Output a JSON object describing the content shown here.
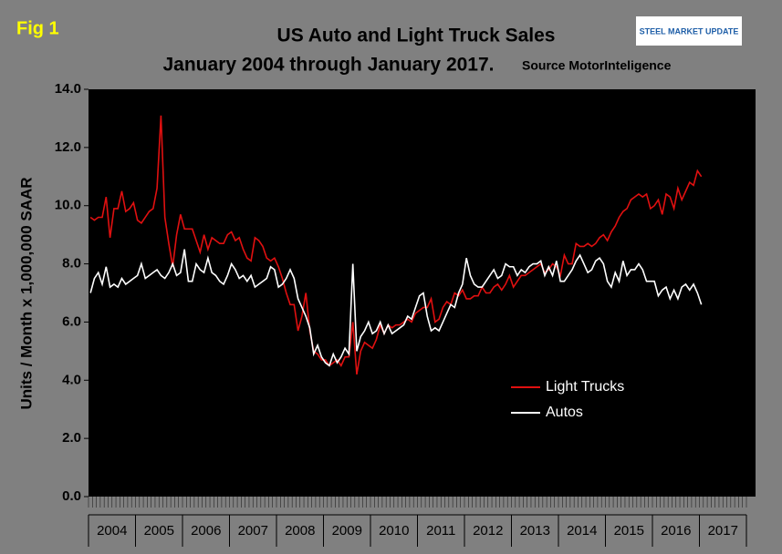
{
  "chart_data": {
    "type": "line",
    "figure_label": "Fig 1",
    "title": "US Auto and Light Truck Sales",
    "subtitle": "January 2004 through January 2017.",
    "source": "Source MotorInteligence",
    "logo_text": "STEEL MARKET UPDATE",
    "y_label": "Units / Month x 1,000,000 SAAR",
    "categories": [
      "2004",
      null,
      null,
      null,
      null,
      null,
      null,
      null,
      null,
      null,
      null,
      null,
      "2005",
      null,
      null,
      null,
      null,
      null,
      null,
      null,
      null,
      null,
      null,
      null,
      "2006",
      null,
      null,
      null,
      null,
      null,
      null,
      null,
      null,
      null,
      null,
      null,
      "2007",
      null,
      null,
      null,
      null,
      null,
      null,
      null,
      null,
      null,
      null,
      null,
      "2008",
      null,
      null,
      null,
      null,
      null,
      null,
      null,
      null,
      null,
      null,
      null,
      "2009",
      null,
      null,
      null,
      null,
      null,
      null,
      null,
      null,
      null,
      null,
      null,
      "2010",
      null,
      null,
      null,
      null,
      null,
      null,
      null,
      null,
      null,
      null,
      null,
      "2011",
      null,
      null,
      null,
      null,
      null,
      null,
      null,
      null,
      null,
      null,
      null,
      "2012",
      null,
      null,
      null,
      null,
      null,
      null,
      null,
      null,
      null,
      null,
      null,
      "2013",
      null,
      null,
      null,
      null,
      null,
      null,
      null,
      null,
      null,
      null,
      null,
      "2014",
      null,
      null,
      null,
      null,
      null,
      null,
      null,
      null,
      null,
      null,
      null,
      "2015",
      null,
      null,
      null,
      null,
      null,
      null,
      null,
      null,
      null,
      null,
      null,
      "2016",
      null,
      null,
      null,
      null,
      null,
      null,
      null,
      null,
      null,
      null,
      null,
      "2017"
    ],
    "series": [
      {
        "name": "Light Trucks",
        "color": "#e01010",
        "values": [
          9.6,
          9.5,
          9.6,
          9.6,
          10.3,
          8.9,
          9.9,
          9.9,
          10.5,
          9.8,
          9.9,
          10.1,
          9.5,
          9.4,
          9.6,
          9.8,
          9.9,
          10.6,
          13.1,
          9.6,
          8.7,
          7.9,
          9.0,
          9.7,
          9.2,
          9.2,
          9.2,
          8.8,
          8.4,
          9.0,
          8.5,
          8.9,
          8.8,
          8.7,
          8.7,
          9.0,
          9.1,
          8.8,
          8.9,
          8.5,
          8.2,
          8.1,
          8.9,
          8.8,
          8.6,
          8.2,
          8.1,
          8.2,
          7.9,
          7.5,
          7.0,
          6.6,
          6.6,
          5.7,
          6.2,
          7.0,
          5.7,
          5.0,
          4.9,
          4.7,
          4.7,
          4.5,
          4.6,
          4.7,
          4.5,
          4.8,
          4.8,
          6.0,
          4.2,
          5.0,
          5.3,
          5.2,
          5.1,
          5.4,
          5.9,
          5.6,
          5.9,
          5.8,
          5.9,
          5.9,
          6.0,
          6.1,
          6.0,
          6.3,
          6.4,
          6.5,
          6.5,
          6.8,
          6.0,
          6.1,
          6.5,
          6.7,
          6.6,
          7.0,
          6.9,
          7.1,
          6.8,
          6.8,
          6.9,
          6.9,
          7.2,
          7.0,
          7.0,
          7.2,
          7.3,
          7.1,
          7.3,
          7.6,
          7.2,
          7.4,
          7.6,
          7.6,
          7.7,
          7.8,
          7.9,
          8.0,
          7.7,
          7.8,
          8.0,
          7.9,
          7.6,
          8.3,
          8.0,
          8.0,
          8.7,
          8.6,
          8.6,
          8.7,
          8.6,
          8.7,
          8.9,
          9.0,
          8.8,
          9.1,
          9.3,
          9.6,
          9.8,
          9.9,
          10.2,
          10.3,
          10.4,
          10.3,
          10.4,
          9.9,
          10.0,
          10.2,
          9.7,
          10.4,
          10.3,
          9.9,
          10.6,
          10.2,
          10.5,
          10.8,
          10.7,
          11.2,
          11.0
        ]
      },
      {
        "name": "Autos",
        "color": "#ffffff",
        "values": [
          7.0,
          7.5,
          7.7,
          7.3,
          7.9,
          7.2,
          7.3,
          7.2,
          7.5,
          7.3,
          7.4,
          7.5,
          7.6,
          8.0,
          7.5,
          7.6,
          7.7,
          7.8,
          7.6,
          7.5,
          7.7,
          8.0,
          7.6,
          7.7,
          8.5,
          7.4,
          7.4,
          8.0,
          7.8,
          7.7,
          8.2,
          7.7,
          7.6,
          7.4,
          7.3,
          7.6,
          8.0,
          7.8,
          7.5,
          7.6,
          7.4,
          7.6,
          7.2,
          7.3,
          7.4,
          7.5,
          7.9,
          7.8,
          7.2,
          7.3,
          7.5,
          7.8,
          7.5,
          6.8,
          6.5,
          6.2,
          5.8,
          4.9,
          5.2,
          4.8,
          4.6,
          4.5,
          4.9,
          4.6,
          4.8,
          5.1,
          4.9,
          8.0,
          5.0,
          5.5,
          5.7,
          6.0,
          5.6,
          5.7,
          6.0,
          5.6,
          5.9,
          5.6,
          5.7,
          5.8,
          5.9,
          6.2,
          6.1,
          6.5,
          6.9,
          7.0,
          6.2,
          5.7,
          5.8,
          5.7,
          6.0,
          6.3,
          6.6,
          6.5,
          7.0,
          7.3,
          8.2,
          7.6,
          7.3,
          7.2,
          7.2,
          7.4,
          7.6,
          7.8,
          7.5,
          7.6,
          8.0,
          7.9,
          7.9,
          7.6,
          7.8,
          7.7,
          7.9,
          8.0,
          8.0,
          8.1,
          7.6,
          7.9,
          7.6,
          8.1,
          7.4,
          7.4,
          7.6,
          7.8,
          8.1,
          8.3,
          8.0,
          7.7,
          7.8,
          8.1,
          8.2,
          8.0,
          7.4,
          7.2,
          7.7,
          7.4,
          8.1,
          7.6,
          7.8,
          7.8,
          8.0,
          7.8,
          7.4,
          7.4,
          7.4,
          6.9,
          7.1,
          7.2,
          6.8,
          7.1,
          6.8,
          7.2,
          7.3,
          7.1,
          7.3,
          7.0,
          6.6
        ]
      }
    ],
    "ylim": [
      0,
      14
    ],
    "yticks": [
      {
        "value": 0,
        "label": "0.0"
      },
      {
        "value": 2,
        "label": "2.0"
      },
      {
        "value": 4,
        "label": "4.0"
      },
      {
        "value": 6,
        "label": "6.0"
      },
      {
        "value": 8,
        "label": "8.0"
      },
      {
        "value": 10,
        "label": "10.0"
      },
      {
        "value": 12,
        "label": "12.0"
      },
      {
        "value": 14,
        "label": "14.0"
      }
    ],
    "legend_position": "lower right"
  }
}
